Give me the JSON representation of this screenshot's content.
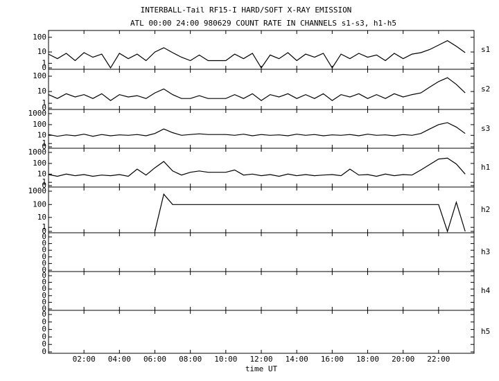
{
  "chart_data": {
    "type": "line",
    "title": "INTERBALL-Tail RF15-I HARD/SOFT X-RAY EMISSION",
    "subtitle": "ATL 00:00 24:00 980629  COUNT RATE IN CHANNELS s1-s3, h1-h5",
    "xlabel": "time UT",
    "xlim": [
      0,
      24
    ],
    "xticks": [
      {
        "value": 2,
        "label": "02:00"
      },
      {
        "value": 4,
        "label": "04:00"
      },
      {
        "value": 6,
        "label": "06:00"
      },
      {
        "value": 8,
        "label": "08:00"
      },
      {
        "value": 10,
        "label": "10:00"
      },
      {
        "value": 12,
        "label": "12:00"
      },
      {
        "value": 14,
        "label": "14:00"
      },
      {
        "value": 16,
        "label": "16:00"
      },
      {
        "value": 18,
        "label": "18:00"
      },
      {
        "value": 20,
        "label": "20:00"
      },
      {
        "value": 22,
        "label": "22:00"
      }
    ],
    "x": [
      0,
      0.5,
      1,
      1.5,
      2,
      2.5,
      3,
      3.5,
      4,
      4.5,
      5,
      5.5,
      6,
      6.5,
      7,
      7.5,
      8,
      8.5,
      9,
      9.5,
      10,
      10.5,
      11,
      11.5,
      12,
      12.5,
      13,
      13.5,
      14,
      14.5,
      15,
      15.5,
      16,
      16.5,
      17,
      17.5,
      18,
      18.5,
      19,
      19.5,
      20,
      20.5,
      21,
      21.5,
      22,
      22.5,
      23,
      23.5,
      24
    ],
    "color": "#000000",
    "series": [
      {
        "name": "s1",
        "yscale": "log1p",
        "ylim": [
          0,
          150
        ],
        "yticks": [
          0,
          1,
          10,
          100
        ],
        "values": [
          7,
          3,
          8,
          2,
          9,
          4,
          7,
          0,
          8,
          3,
          7,
          2,
          10,
          20,
          9,
          4,
          2,
          6,
          2,
          2,
          2,
          7,
          3,
          8,
          0,
          6,
          3,
          9,
          2,
          7,
          4,
          8,
          0,
          7,
          3,
          8,
          4,
          6,
          2,
          8,
          3,
          7,
          9,
          15,
          30,
          60,
          25,
          9,
          null
        ]
      },
      {
        "name": "s2",
        "yscale": "log1p",
        "ylim": [
          0,
          150
        ],
        "yticks": [
          0,
          1,
          10,
          100
        ],
        "values": [
          6,
          3,
          7,
          4,
          6,
          3,
          7,
          2,
          6,
          4,
          5,
          3,
          8,
          15,
          6,
          3,
          3,
          5,
          3,
          3,
          3,
          6,
          3,
          7,
          2,
          6,
          4,
          7,
          3,
          6,
          3,
          7,
          2,
          6,
          4,
          7,
          3,
          6,
          3,
          7,
          4,
          6,
          8,
          20,
          45,
          80,
          30,
          8,
          null
        ]
      },
      {
        "name": "s3",
        "yscale": "log1p",
        "ylim": [
          0,
          1000
        ],
        "yticks": [
          0,
          1,
          10,
          100,
          1000
        ],
        "values": [
          12,
          8,
          11,
          9,
          13,
          8,
          12,
          9,
          11,
          10,
          12,
          9,
          15,
          40,
          18,
          10,
          12,
          14,
          12,
          12,
          12,
          10,
          13,
          9,
          12,
          10,
          11,
          9,
          13,
          10,
          12,
          9,
          11,
          10,
          12,
          9,
          13,
          10,
          11,
          9,
          12,
          10,
          15,
          40,
          100,
          150,
          60,
          15,
          null
        ]
      },
      {
        "name": "h1",
        "yscale": "log1p",
        "ylim": [
          0,
          1000
        ],
        "yticks": [
          0,
          1,
          10,
          100,
          1000
        ],
        "values": [
          9,
          6,
          10,
          7,
          9,
          6,
          8,
          7,
          9,
          6,
          30,
          8,
          40,
          150,
          20,
          8,
          15,
          20,
          15,
          15,
          15,
          25,
          8,
          10,
          7,
          9,
          6,
          10,
          7,
          9,
          7,
          8,
          9,
          7,
          30,
          8,
          9,
          6,
          10,
          7,
          9,
          8,
          25,
          80,
          250,
          300,
          90,
          10,
          null
        ]
      },
      {
        "name": "h2",
        "yscale": "log1p",
        "ylim": [
          0,
          1000
        ],
        "yticks": [
          0,
          1,
          10,
          100,
          1000
        ],
        "values": [
          null,
          null,
          null,
          null,
          null,
          null,
          null,
          null,
          null,
          null,
          null,
          null,
          0,
          600,
          100,
          100,
          100,
          100,
          100,
          100,
          100,
          100,
          100,
          100,
          100,
          100,
          100,
          100,
          100,
          100,
          100,
          100,
          100,
          100,
          100,
          100,
          100,
          100,
          100,
          100,
          100,
          100,
          100,
          100,
          100,
          0,
          150,
          0,
          null
        ]
      },
      {
        "name": "h3",
        "yscale": "linear",
        "ylim": [
          0,
          0.01
        ],
        "yticks": [
          {
            "value": 0,
            "label": "0"
          },
          {
            "value": 0.002,
            "label": "0"
          },
          {
            "value": 0.004,
            "label": "0"
          },
          {
            "value": 0.006,
            "label": "0"
          },
          {
            "value": 0.008,
            "label": "0"
          },
          {
            "value": 0.01,
            "label": "0"
          }
        ]
      },
      {
        "name": "h4",
        "yscale": "linear",
        "ylim": [
          0,
          0.01
        ],
        "yticks": [
          {
            "value": 0,
            "label": "0"
          },
          {
            "value": 0.002,
            "label": "0"
          },
          {
            "value": 0.004,
            "label": "0"
          },
          {
            "value": 0.006,
            "label": "0"
          },
          {
            "value": 0.008,
            "label": "0"
          },
          {
            "value": 0.01,
            "label": "0"
          }
        ]
      },
      {
        "name": "h5",
        "yscale": "linear",
        "ylim": [
          0,
          0.01
        ],
        "yticks": [
          {
            "value": 0,
            "label": "0"
          },
          {
            "value": 0.002,
            "label": "0"
          },
          {
            "value": 0.004,
            "label": "0"
          },
          {
            "value": 0.006,
            "label": "0"
          },
          {
            "value": 0.008,
            "label": "0"
          },
          {
            "value": 0.01,
            "label": "0"
          }
        ]
      }
    ]
  }
}
